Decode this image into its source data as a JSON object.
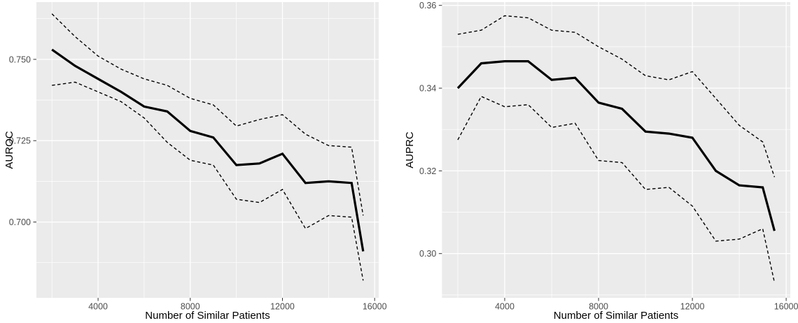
{
  "style": {
    "background": "#FFFFFF",
    "panel_bg": "#EBEBEB",
    "grid_color": "#FFFFFF",
    "tick_color": "#333333",
    "tick_label_color": "#4D4D4D",
    "axis_title_color": "#000000",
    "line_color": "#000000"
  },
  "chart_data": [
    {
      "type": "line",
      "title": "",
      "xlabel": "Number of Similar Patients",
      "ylabel": "AUROC",
      "legend": "none",
      "grid": true,
      "x": [
        2000,
        3000,
        4000,
        5000,
        6000,
        7000,
        8000,
        9000,
        10000,
        11000,
        12000,
        13000,
        14000,
        15000,
        15500
      ],
      "series": [
        {
          "key": "auroc-mean-line",
          "name": "AUROC mean",
          "style": "solid",
          "values": [
            0.753,
            0.748,
            0.744,
            0.74,
            0.7355,
            0.734,
            0.728,
            0.726,
            0.7175,
            0.718,
            0.721,
            0.712,
            0.7125,
            0.712,
            0.691
          ]
        },
        {
          "key": "auroc-upper-bound-line",
          "name": "AUROC upper confidence bound",
          "style": "dashed",
          "values": [
            0.764,
            0.757,
            0.751,
            0.747,
            0.744,
            0.742,
            0.738,
            0.736,
            0.7295,
            0.7315,
            0.733,
            0.727,
            0.7235,
            0.723,
            0.702
          ]
        },
        {
          "key": "auroc-lower-bound-line",
          "name": "AUROC lower confidence bound",
          "style": "dashed",
          "values": [
            0.742,
            0.743,
            0.74,
            0.737,
            0.732,
            0.7245,
            0.719,
            0.7175,
            0.707,
            0.706,
            0.71,
            0.698,
            0.702,
            0.7015,
            0.682
          ]
        }
      ],
      "xlim": [
        1325,
        16175
      ],
      "ylim": [
        0.6767,
        0.7676
      ],
      "x_ticks": [
        4000,
        8000,
        12000,
        16000
      ],
      "x_tick_labels": [
        "4000",
        "8000",
        "12000",
        "16000"
      ],
      "x_minor": [
        2000,
        6000,
        10000,
        14000
      ],
      "y_ticks": [
        0.7,
        0.725,
        0.75
      ],
      "y_tick_labels": [
        "0.700",
        "0.725",
        "0.750"
      ],
      "y_minor": [
        0.6875,
        0.7125,
        0.7375,
        0.7625
      ]
    },
    {
      "type": "line",
      "title": "",
      "xlabel": "Number of Similar Patients",
      "ylabel": "AUPRC",
      "legend": "none",
      "grid": true,
      "x": [
        2000,
        3000,
        4000,
        5000,
        6000,
        7000,
        8000,
        9000,
        10000,
        11000,
        12000,
        13000,
        14000,
        15000,
        15500
      ],
      "series": [
        {
          "key": "auprc-mean-line",
          "name": "AUPRC mean",
          "style": "solid",
          "values": [
            0.34,
            0.346,
            0.3465,
            0.3465,
            0.342,
            0.3425,
            0.3365,
            0.335,
            0.3295,
            0.329,
            0.328,
            0.32,
            0.3165,
            0.316,
            0.3055
          ]
        },
        {
          "key": "auprc-upper-bound-line",
          "name": "AUPRC upper confidence bound",
          "style": "dashed",
          "values": [
            0.353,
            0.354,
            0.3575,
            0.357,
            0.354,
            0.3535,
            0.35,
            0.347,
            0.343,
            0.342,
            0.344,
            0.3375,
            0.331,
            0.327,
            0.3185
          ]
        },
        {
          "key": "auprc-lower-bound-line",
          "name": "AUPRC lower confidence bound",
          "style": "dashed",
          "values": [
            0.3275,
            0.338,
            0.3355,
            0.336,
            0.3305,
            0.3315,
            0.3225,
            0.322,
            0.3155,
            0.316,
            0.3115,
            0.303,
            0.3035,
            0.306,
            0.293
          ]
        }
      ],
      "xlim": [
        1325,
        16175
      ],
      "ylim": [
        0.2893,
        0.3608
      ],
      "x_ticks": [
        4000,
        8000,
        12000,
        16000
      ],
      "x_tick_labels": [
        "4000",
        "8000",
        "12000",
        "16000"
      ],
      "x_minor": [
        2000,
        6000,
        10000,
        14000
      ],
      "y_ticks": [
        0.3,
        0.32,
        0.34,
        0.36
      ],
      "y_tick_labels": [
        "0.30",
        "0.32",
        "0.34",
        "0.36"
      ],
      "y_minor": [
        0.29,
        0.31,
        0.33,
        0.35
      ]
    }
  ]
}
